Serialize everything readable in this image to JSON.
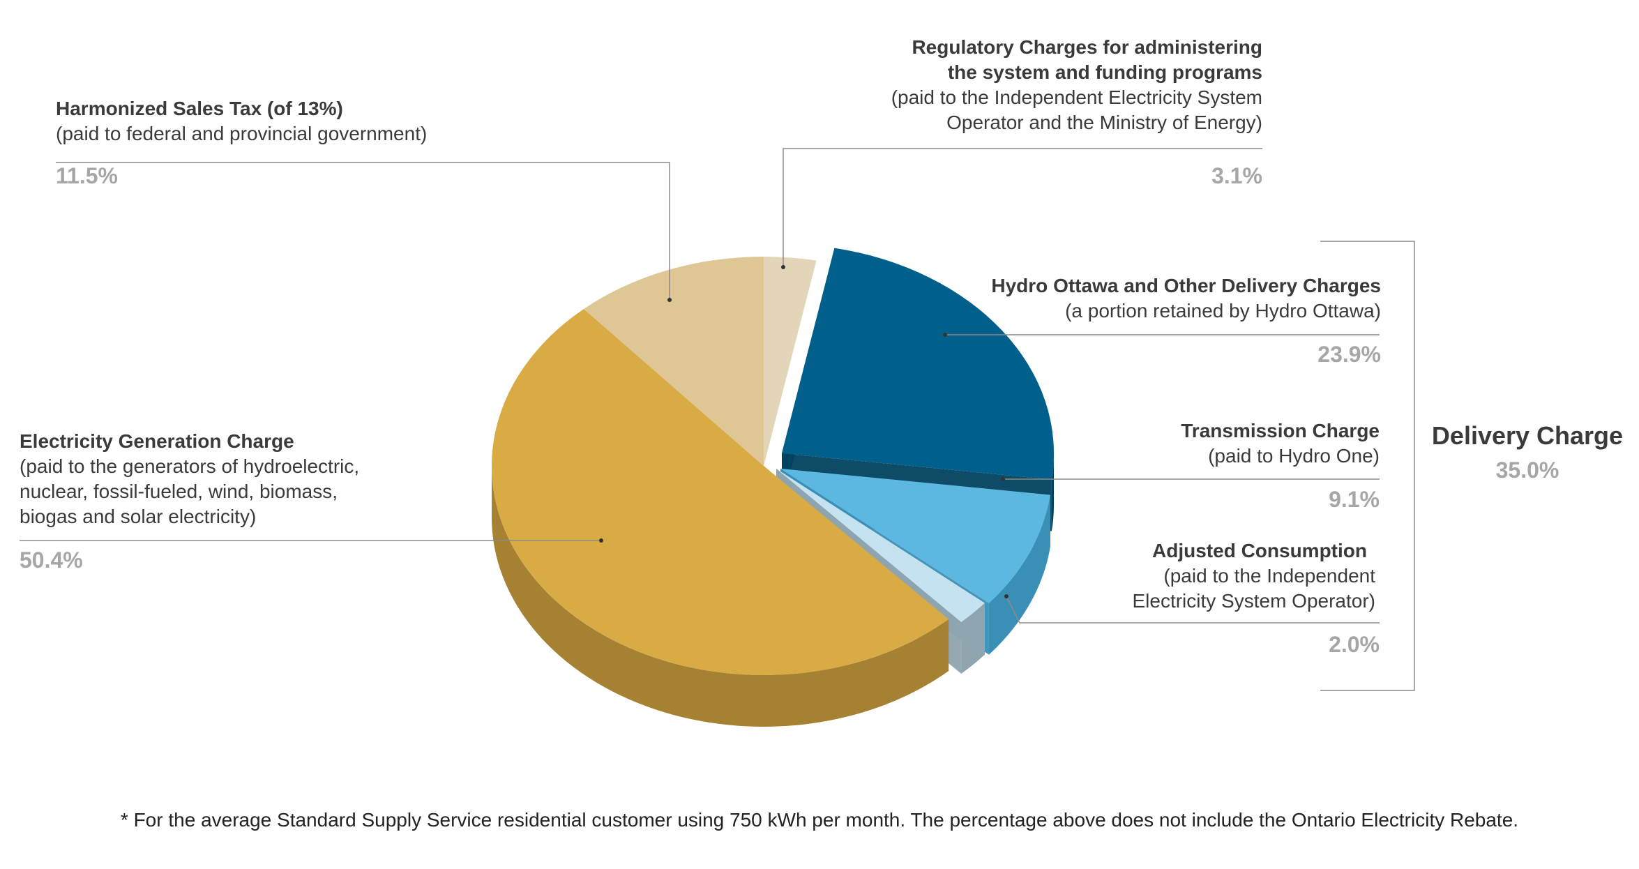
{
  "chart_data": {
    "type": "pie",
    "slices": [
      {
        "key": "gen",
        "title": "Electricity Generation Charge",
        "desc": [
          "(paid to the generators of hydroelectric,",
          "nuclear, fossil-fueled, wind, biomass,",
          "biogas and solar electricity)"
        ],
        "value": 50.4,
        "label": "50.4%",
        "color": "#d9ab45",
        "side_color": "#a68132"
      },
      {
        "key": "hst",
        "title": "Harmonized Sales Tax (of 13%)",
        "desc": [
          "(paid to federal and provincial government)"
        ],
        "value": 11.5,
        "label": "11.5%",
        "color": "#dfc695",
        "side_color": "#b59e72"
      },
      {
        "key": "reg",
        "title": [
          "Regulatory Charges for administering",
          "the system and funding programs"
        ],
        "desc": [
          "(paid to the Independent Electricity System",
          "Operator and the Ministry of Energy)"
        ],
        "value": 3.1,
        "label": "3.1%",
        "color": "#e2d5b8",
        "side_color": "#b7aa8f"
      },
      {
        "key": "hydro",
        "title": "Hydro Ottawa and Other Delivery Charges",
        "desc": [
          "(a portion retained by Hydro Ottawa)"
        ],
        "value": 23.9,
        "label": "23.9%",
        "color": "#005f8b",
        "side_color": "#00415f"
      },
      {
        "key": "trans",
        "title": "Transmission Charge",
        "desc": [
          "(paid to Hydro One)"
        ],
        "value": 9.1,
        "label": "9.1%",
        "color": "#5cb8e0",
        "side_color": "#3a8fb6"
      },
      {
        "key": "adj",
        "title": "Adjusted Consumption",
        "desc": [
          "(paid to the Independent",
          "Electricity System Operator)"
        ],
        "value": 2.0,
        "label": "2.0%",
        "color": "#c5e2f0",
        "side_color": "#8ea4ae"
      }
    ],
    "group": {
      "title": "Delivery Charge",
      "value": 35.0,
      "label": "35.0%"
    },
    "legend": "none"
  },
  "footnote": "* For the average Standard Supply Service residential customer using 750 kWh per month. The percentage above does not include the Ontario Electricity Rebate."
}
